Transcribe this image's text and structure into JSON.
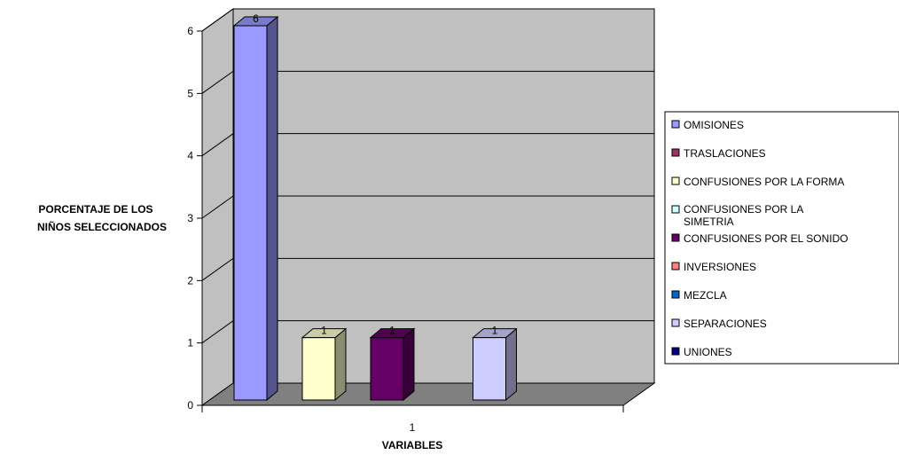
{
  "chart_data": {
    "type": "bar",
    "categories": [
      "1"
    ],
    "series": [
      {
        "name": "OMISIONES",
        "values": [
          6
        ],
        "color": "#9999FF"
      },
      {
        "name": "TRASLACIONES",
        "values": [
          null
        ],
        "color": "#993366"
      },
      {
        "name": "CONFUSIONES POR LA FORMA",
        "values": [
          1
        ],
        "color": "#FFFFCC"
      },
      {
        "name": "CONFUSIONES POR LA SIMETRIA",
        "values": [
          null
        ],
        "color": "#CCFFFF"
      },
      {
        "name": "CONFUSIONES POR EL SONIDO",
        "values": [
          1
        ],
        "color": "#660066"
      },
      {
        "name": "INVERSIONES",
        "values": [
          null
        ],
        "color": "#FF8080"
      },
      {
        "name": "MEZCLA",
        "values": [
          null
        ],
        "color": "#0066CC"
      },
      {
        "name": "SEPARACIONES",
        "values": [
          1
        ],
        "color": "#CCCCFF"
      },
      {
        "name": "UNIONES",
        "values": [
          null
        ],
        "color": "#000080"
      }
    ],
    "xlabel": "VARIABLES",
    "ylabel_lines": [
      "PORCENTAJE DE LOS",
      "NIÑOS SELECCIONADOS"
    ],
    "ylim": [
      0,
      6
    ],
    "yticks": [
      "0",
      "1",
      "2",
      "3",
      "4",
      "5",
      "6"
    ],
    "grid": true,
    "legend": "right",
    "style": "3d",
    "wall_color": "#C0C0C0",
    "floor_color": "#808080"
  }
}
